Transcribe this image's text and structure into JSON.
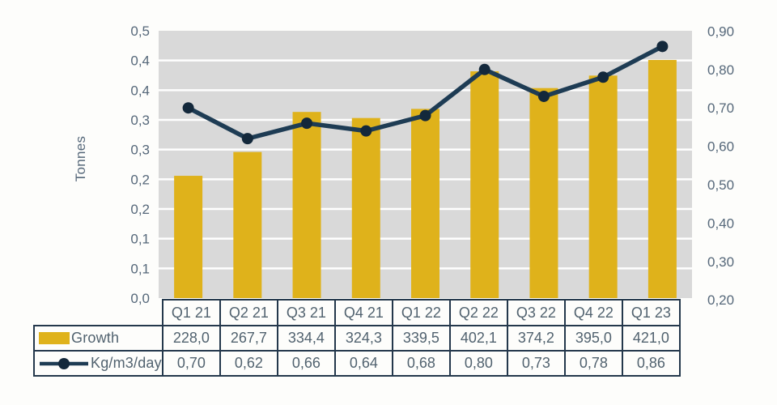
{
  "chart_data": {
    "type": "bar+line combo",
    "categories": [
      "Q1 21",
      "Q2 21",
      "Q3 21",
      "Q4 21",
      "Q1 22",
      "Q2 22",
      "Q3 22",
      "Q4 22",
      "Q1 23"
    ],
    "series": [
      {
        "name": "Growth",
        "type": "bar",
        "axis": "left",
        "values": [
          228.0,
          267.7,
          334.4,
          324.3,
          339.5,
          402.1,
          374.2,
          395.0,
          421.0
        ],
        "decimals": 1,
        "color": "#DFB21B"
      },
      {
        "name": "Kg/m3/day",
        "type": "line",
        "axis": "right",
        "values": [
          0.7,
          0.62,
          0.66,
          0.64,
          0.68,
          0.8,
          0.73,
          0.78,
          0.86
        ],
        "decimals": 2,
        "color": "#1E3C54",
        "marker_color": "#13283B"
      }
    ],
    "ylabel_left": "Tonnes",
    "axes": {
      "left": {
        "tick_labels": [
          "0,5",
          "0,4",
          "0,4",
          "0,3",
          "0,3",
          "0,2",
          "0,2",
          "0,1",
          "0,1",
          "0,0"
        ]
      },
      "right": {
        "tick_labels": [
          "0,90",
          "0,80",
          "0,70",
          "0,60",
          "0,50",
          "0,40",
          "0,30",
          "0,20"
        ],
        "tick_values": [
          0.9,
          0.8,
          0.7,
          0.6,
          0.5,
          0.4,
          0.3,
          0.2
        ]
      }
    },
    "colors": {
      "plot_background": "#D9D9D9",
      "gridline": "#FFFFFF",
      "axis_text": "#56687A",
      "table_text": "#51626F",
      "table_border": "#24384C"
    },
    "grid": true,
    "legend_position": "table-left"
  }
}
